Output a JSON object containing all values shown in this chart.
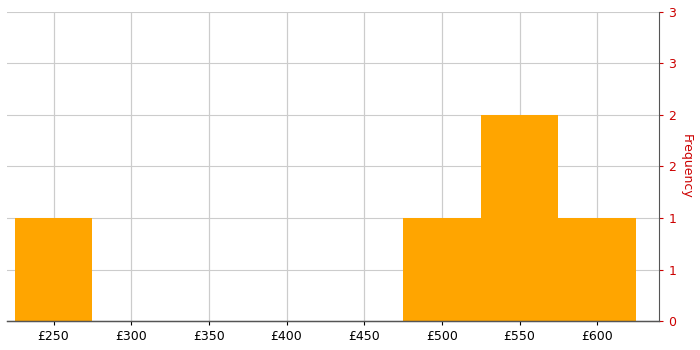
{
  "title": "",
  "bar_color": "#FFA500",
  "bar_edgecolor": "#FFA500",
  "background_color": "#ffffff",
  "grid_color": "#cccccc",
  "bin_edges": [
    225,
    275,
    325,
    375,
    425,
    475,
    525,
    575,
    625
  ],
  "frequencies": [
    1,
    0,
    0,
    0,
    0,
    1,
    2,
    1
  ],
  "xlim": [
    220,
    640
  ],
  "ylim": [
    0,
    3
  ],
  "xticks": [
    250,
    300,
    350,
    400,
    450,
    500,
    550,
    600
  ],
  "xtick_labels": [
    "£250",
    "£300",
    "£350",
    "£400",
    "£450",
    "£500",
    "£550",
    "£600"
  ],
  "right_yticks": [
    0,
    0.5,
    1,
    1.5,
    2,
    2.5,
    3
  ],
  "right_yticklabels": [
    "0",
    "1",
    "1",
    "2",
    "2",
    "3",
    "3"
  ],
  "ylabel": "Frequency",
  "ylabel_color": "#cc0000",
  "tick_color": "#cc0000",
  "ylabel_fontsize": 9,
  "figsize": [
    7.0,
    3.5
  ],
  "dpi": 100
}
